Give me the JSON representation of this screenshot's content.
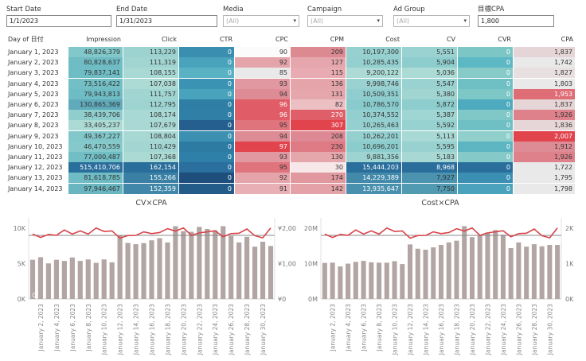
{
  "filters": [
    {
      "label": "Start Date",
      "value": "1/1/2023",
      "dropdown": false
    },
    {
      "label": "End Date",
      "value": "1/31/2023",
      "dropdown": false
    },
    {
      "label": "Media",
      "value": "(All)",
      "dropdown": true
    },
    {
      "label": "Campaign",
      "value": "(All)",
      "dropdown": true
    },
    {
      "label": "Ad Group",
      "value": "(All)",
      "dropdown": true
    },
    {
      "label": "目標CPA",
      "value": "1,800",
      "dropdown": false
    }
  ],
  "table": {
    "headers": [
      "Day of 日付",
      "Impression",
      "Click",
      "CTR",
      "CPC",
      "CPM",
      "Cost",
      "CV",
      "CVR",
      "CPA"
    ],
    "rows": [
      {
        "day": "January 1, 2023",
        "impression": "48,826,379",
        "click": "113,229",
        "ctr": "0",
        "cpc": "90",
        "cpm": "209",
        "cost": "10,197,300",
        "cv": "5,551",
        "cvr": "0",
        "cpa": "1,837"
      },
      {
        "day": "January 2, 2023",
        "impression": "80,828,637",
        "click": "111,319",
        "ctr": "0",
        "cpc": "92",
        "cpm": "127",
        "cost": "10,285,435",
        "cv": "5,904",
        "cvr": "0",
        "cpa": "1,742"
      },
      {
        "day": "January 3, 2023",
        "impression": "79,837,141",
        "click": "108,155",
        "ctr": "0",
        "cpc": "85",
        "cpm": "115",
        "cost": "9,200,122",
        "cv": "5,036",
        "cvr": "0",
        "cpa": "1,827"
      },
      {
        "day": "January 4, 2023",
        "impression": "73,516,422",
        "click": "107,038",
        "ctr": "0",
        "cpc": "93",
        "cpm": "136",
        "cost": "9,998,746",
        "cv": "5,547",
        "cvr": "0",
        "cpa": "1,803"
      },
      {
        "day": "January 5, 2023",
        "impression": "79,943,813",
        "click": "111,757",
        "ctr": "0",
        "cpc": "94",
        "cpm": "131",
        "cost": "10,509,351",
        "cv": "5,380",
        "cvr": "0",
        "cpa": "1,953"
      },
      {
        "day": "January 6, 2023",
        "impression": "130,865,369",
        "click": "112,795",
        "ctr": "0",
        "cpc": "96",
        "cpm": "82",
        "cost": "10,786,570",
        "cv": "5,872",
        "cvr": "0",
        "cpa": "1,837"
      },
      {
        "day": "January 7, 2023",
        "impression": "38,439,706",
        "click": "108,174",
        "ctr": "0",
        "cpc": "96",
        "cpm": "270",
        "cost": "10,374,552",
        "cv": "5,387",
        "cvr": "0",
        "cpa": "1,926"
      },
      {
        "day": "January 8, 2023",
        "impression": "33,405,237",
        "click": "107,679",
        "ctr": "0",
        "cpc": "95",
        "cpm": "307",
        "cost": "10,265,463",
        "cv": "5,592",
        "cvr": "0",
        "cpa": "1,836"
      },
      {
        "day": "January 9, 2023",
        "impression": "49,367,227",
        "click": "108,804",
        "ctr": "0",
        "cpc": "94",
        "cpm": "208",
        "cost": "10,262,201",
        "cv": "5,113",
        "cvr": "0",
        "cpa": "2,007"
      },
      {
        "day": "January 10, 2023",
        "impression": "46,470,559",
        "click": "110,429",
        "ctr": "0",
        "cpc": "97",
        "cpm": "230",
        "cost": "10,696,201",
        "cv": "5,595",
        "cvr": "0",
        "cpa": "1,912"
      },
      {
        "day": "January 11, 2023",
        "impression": "77,000,487",
        "click": "107,368",
        "ctr": "0",
        "cpc": "93",
        "cpm": "130",
        "cost": "9,881,356",
        "cv": "5,183",
        "cvr": "0",
        "cpa": "1,926"
      },
      {
        "day": "January 12, 2023",
        "impression": "515,410,706",
        "click": "162,154",
        "ctr": "0",
        "cpc": "95",
        "cpm": "30",
        "cost": "15,444,203",
        "cv": "8,968",
        "cvr": "0",
        "cpa": "1,722"
      },
      {
        "day": "January 13, 2023",
        "impression": "81,618,785",
        "click": "155,266",
        "ctr": "0",
        "cpc": "92",
        "cpm": "174",
        "cost": "14,229,389",
        "cv": "7,927",
        "cvr": "0",
        "cpa": "1,795"
      },
      {
        "day": "January 14, 2023",
        "impression": "97,946,467",
        "click": "152,359",
        "ctr": "0",
        "cpc": "91",
        "cpm": "142",
        "cost": "13,935,647",
        "cv": "7,750",
        "cvr": "0",
        "cpa": "1,798"
      }
    ]
  },
  "colors": {
    "teal_light": "#c4e5dc",
    "teal_mid": "#73c1c6",
    "teal_dark": "#2a6e9c",
    "red_light": "#e8b0b5",
    "red_mid": "#dd8c95",
    "red_dark": "#e2444e",
    "grey_light": "#e9e9e9",
    "bar": "#b2a5a3",
    "line": "#d9444b",
    "ref_line": "#888888"
  },
  "chart_data": [
    {
      "type": "bar",
      "title": "CV×CPA",
      "categories": [
        "January 1, 2023",
        "January 2, 2023",
        "January 3, 2023",
        "January 4, 2023",
        "January 5, 2023",
        "January 6, 2023",
        "January 7, 2023",
        "January 8, 2023",
        "January 9, 2023",
        "January 10, 2023",
        "January 11, 2023",
        "January 12, 2023",
        "January 13, 2023",
        "January 14, 2023",
        "January 15, 2023",
        "January 16, 2023",
        "January 17, 2023",
        "January 18, 2023",
        "January 19, 2023",
        "January 20, 2023",
        "January 21, 2023",
        "January 22, 2023",
        "January 23, 2023",
        "January 24, 2023",
        "January 25, 2023",
        "January 26, 2023",
        "January 27, 2023",
        "January 28, 2023",
        "January 29, 2023",
        "January 30, 2023",
        "January 31, 2023"
      ],
      "tick_labels": [
        "January 2, 2023",
        "January 4, 2023",
        "January 6, 2023",
        "January 8, 2023",
        "January 10, 2023",
        "January 12, 2023",
        "January 14, 2023",
        "January 16, 2023",
        "January 18, 2023",
        "January 20, 2023",
        "January 22, 2023",
        "January 24, 2023",
        "January 26, 2023",
        "January 28, 2023",
        "January 30, 2023"
      ],
      "series": [
        {
          "name": "CV",
          "kind": "bar",
          "axis": "left",
          "values": [
            5551,
            5904,
            5036,
            5547,
            5380,
            5872,
            5387,
            5592,
            5113,
            5595,
            5183,
            8968,
            7927,
            7750,
            7900,
            8300,
            8600,
            8000,
            10300,
            9600,
            9500,
            10200,
            9900,
            9700,
            10300,
            8900,
            8000,
            8800,
            7400,
            8100,
            7500
          ]
        },
        {
          "name": "CPA",
          "kind": "line",
          "axis": "right",
          "values": [
            1837,
            1742,
            1827,
            1803,
            1953,
            1837,
            1926,
            1836,
            2007,
            1912,
            1926,
            1722,
            1795,
            1798,
            1900,
            1850,
            1880,
            1990,
            1920,
            2010,
            1800,
            1870,
            1900,
            1930,
            1760,
            1850,
            1860,
            1980,
            1790,
            1730,
            2010
          ]
        }
      ],
      "ref_line": {
        "axis": "right",
        "value": 1800
      },
      "y_left": {
        "ticks": [
          "0K",
          "5K",
          "10K"
        ],
        "tick_values": [
          0,
          5000,
          10000
        ],
        "ylim": [
          0,
          10800
        ]
      },
      "y_right": {
        "ticks": [
          "¥0",
          "¥1,000",
          "¥2,000"
        ],
        "tick_values": [
          0,
          1000,
          2000
        ],
        "ylim": [
          0,
          2160
        ]
      },
      "inline_label": "0",
      "grid": false
    },
    {
      "type": "bar",
      "title": "Cost×CPA",
      "categories": [
        "January 1, 2023",
        "January 2, 2023",
        "January 3, 2023",
        "January 4, 2023",
        "January 5, 2023",
        "January 6, 2023",
        "January 7, 2023",
        "January 8, 2023",
        "January 9, 2023",
        "January 10, 2023",
        "January 11, 2023",
        "January 12, 2023",
        "January 13, 2023",
        "January 14, 2023",
        "January 15, 2023",
        "January 16, 2023",
        "January 17, 2023",
        "January 18, 2023",
        "January 19, 2023",
        "January 20, 2023",
        "January 21, 2023",
        "January 22, 2023",
        "January 23, 2023",
        "January 24, 2023",
        "January 25, 2023",
        "January 26, 2023",
        "January 27, 2023",
        "January 28, 2023",
        "January 29, 2023",
        "January 30, 2023",
        "January 31, 2023"
      ],
      "tick_labels": [
        "January 2, 2023",
        "January 4, 2023",
        "January 6, 2023",
        "January 8, 2023",
        "January 10, 2023",
        "January 12, 2023",
        "January 14, 2023",
        "January 16, 2023",
        "January 18, 2023",
        "January 20, 2023",
        "January 22, 2023",
        "January 24, 2023",
        "January 26, 2023",
        "January 28, 2023",
        "January 30, 2023"
      ],
      "series": [
        {
          "name": "Cost",
          "kind": "bar",
          "axis": "left",
          "values": [
            10197300,
            10285435,
            9200122,
            9998746,
            10509351,
            10786570,
            10374552,
            10265463,
            10262201,
            10696201,
            9881356,
            15444203,
            14229389,
            13935647,
            14600000,
            15300000,
            16000000,
            16500000,
            20600000,
            17500000,
            18000000,
            18800000,
            19500000,
            18200000,
            14400000,
            16000000,
            14800000,
            15500000,
            14900000,
            15300000,
            15300000
          ]
        },
        {
          "name": "CPA",
          "kind": "line",
          "axis": "right",
          "values": [
            1837,
            1742,
            1827,
            1803,
            1953,
            1837,
            1926,
            1836,
            2007,
            1912,
            1926,
            1722,
            1795,
            1798,
            1900,
            1850,
            1880,
            1990,
            1920,
            2010,
            1800,
            1870,
            1900,
            1930,
            1760,
            1850,
            1860,
            1980,
            1790,
            1730,
            2010
          ]
        }
      ],
      "ref_line": {
        "axis": "right",
        "value": 1800
      },
      "y_left": {
        "ticks": [
          "0M",
          "10M",
          "20M"
        ],
        "tick_values": [
          0,
          10000000,
          20000000
        ],
        "ylim": [
          0,
          21600000
        ]
      },
      "y_right": {
        "ticks": [
          "0K",
          "1K",
          "2K"
        ],
        "tick_values": [
          0,
          1000,
          2000
        ],
        "ylim": [
          0,
          2160
        ]
      },
      "grid": false
    }
  ]
}
